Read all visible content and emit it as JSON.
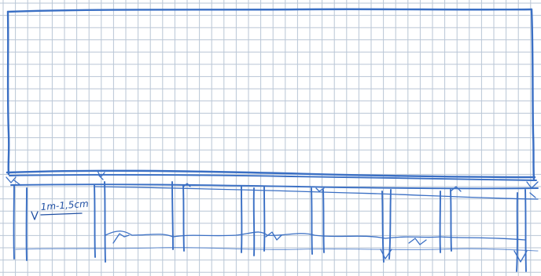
{
  "sketch": {
    "dimension_label": "1m-1,5cm"
  },
  "colors": {
    "paper": "#ffffff",
    "grid": "#b9c6d6",
    "ink": "#3a6fc4",
    "ink_dark": "#1f4fa3"
  }
}
